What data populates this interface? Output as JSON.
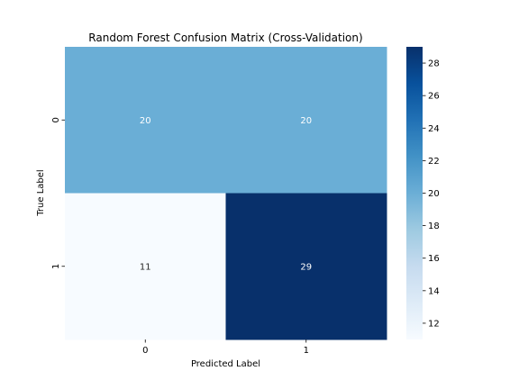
{
  "chart_data": {
    "type": "heatmap",
    "title": "Random Forest Confusion Matrix (Cross-Validation)",
    "xlabel": "Predicted Label",
    "ylabel": "True Label",
    "x_categories": [
      "0",
      "1"
    ],
    "y_categories": [
      "0",
      "1"
    ],
    "matrix": [
      [
        20,
        20
      ],
      [
        11,
        29
      ]
    ],
    "colormap": "Blues",
    "vmin": 11,
    "vmax": 29,
    "colorbar": {
      "ticks": [
        12,
        14,
        16,
        18,
        20,
        22,
        24,
        26,
        28
      ],
      "tick_labels": [
        "12",
        "14",
        "16",
        "18",
        "20",
        "22",
        "24",
        "26",
        "28"
      ]
    },
    "cell_colors": [
      [
        "#6aaed6",
        "#6aaed6"
      ],
      [
        "#f7fbff",
        "#08306b"
      ]
    ],
    "annotation_colors": [
      [
        "#ffffff",
        "#ffffff"
      ],
      [
        "#262626",
        "#ffffff"
      ]
    ],
    "colorbar_gradient": [
      "#f7fbff",
      "#deebf7",
      "#c6dbef",
      "#9ecae1",
      "#6baed6",
      "#4292c6",
      "#2171b5",
      "#08519c",
      "#08306b"
    ]
  }
}
